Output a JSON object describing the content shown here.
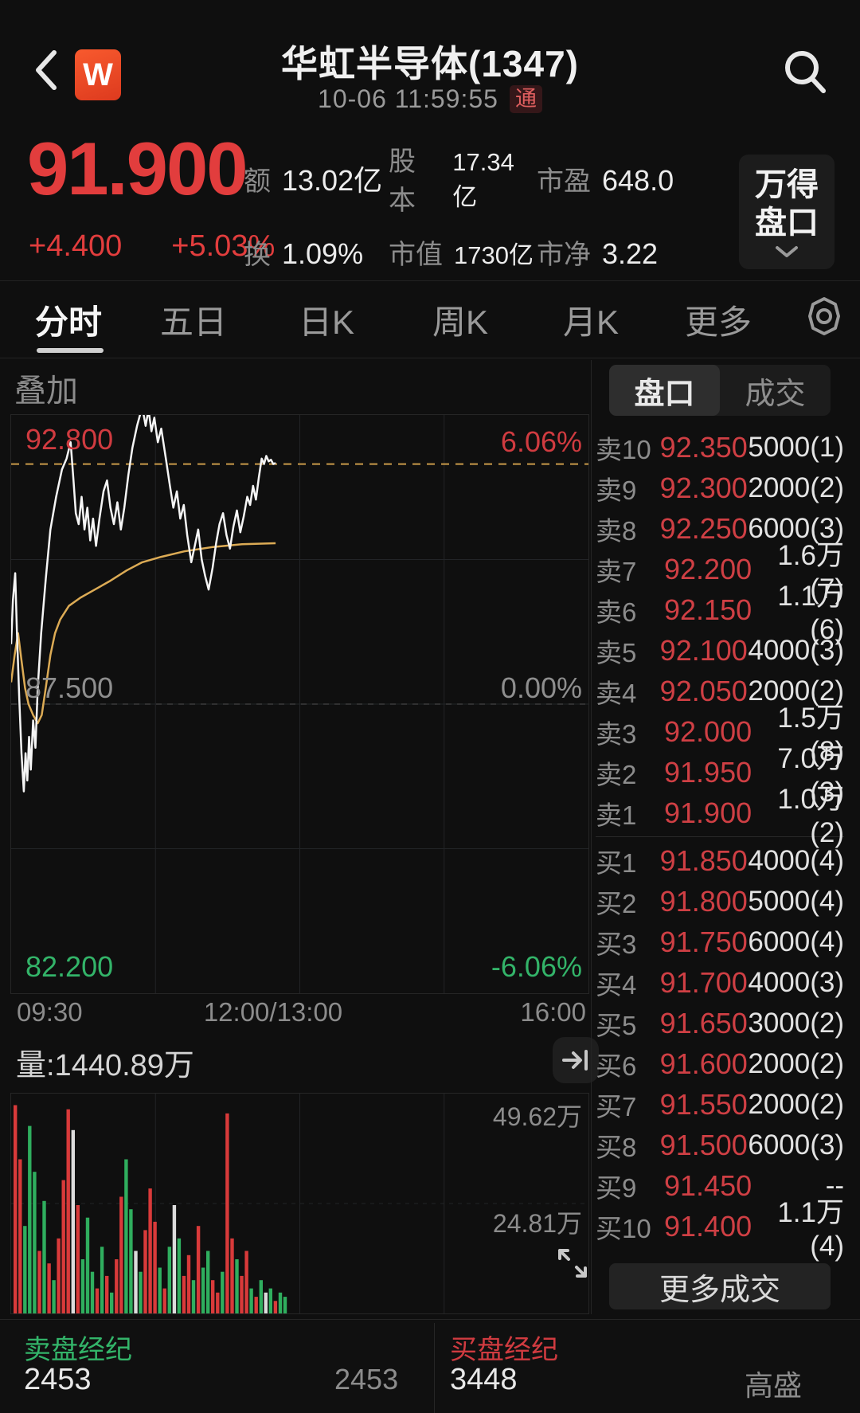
{
  "header": {
    "logo_text": "W",
    "title": "华虹半导体(1347)",
    "datetime": "10-06 11:59:55",
    "badge": "通"
  },
  "price_panel": {
    "last_price": "91.900",
    "change_abs": "+4.400",
    "change_pct": "+5.03%",
    "stats": {
      "r1c1_label": "额",
      "r1c1_value": "13.02亿",
      "r1c2_label": "股本",
      "r1c2_value": "17.34亿",
      "r1c3_label": "市盈",
      "r1c3_value": "648.0",
      "r2c1_label": "换",
      "r2c1_value": "1.09%",
      "r2c2_label": "市值",
      "r2c2_value": "1730亿",
      "r2c3_label": "市净",
      "r2c3_value": "3.22"
    },
    "wind_button_line1": "万得",
    "wind_button_line2": "盘口"
  },
  "tabs": {
    "items": [
      {
        "label": "分时",
        "active": true
      },
      {
        "label": "五日",
        "active": false
      },
      {
        "label": "日K",
        "active": false
      },
      {
        "label": "周K",
        "active": false
      },
      {
        "label": "月K",
        "active": false
      },
      {
        "label": "更多",
        "active": false
      }
    ]
  },
  "chart_labels": {
    "overlay": "叠加",
    "high_price": "92.800",
    "high_pct": "6.06%",
    "mid_price": "87.500",
    "mid_pct": "0.00%",
    "low_price": "82.200",
    "low_pct": "-6.06%",
    "time_left": "09:30",
    "time_mid": "12:00/13:00",
    "time_right": "16:00"
  },
  "volume_panel": {
    "header": "量:1440.89万",
    "scale_top": "49.62万",
    "scale_mid": "24.81万"
  },
  "order_book": {
    "tab_depth": "盘口",
    "tab_trades": "成交",
    "rows": [
      {
        "side": "卖10",
        "price": "92.350",
        "qty": "5000(1)"
      },
      {
        "side": "卖9",
        "price": "92.300",
        "qty": "2000(2)"
      },
      {
        "side": "卖8",
        "price": "92.250",
        "qty": "6000(3)"
      },
      {
        "side": "卖7",
        "price": "92.200",
        "qty": "1.6万(7)"
      },
      {
        "side": "卖6",
        "price": "92.150",
        "qty": "1.1万(6)"
      },
      {
        "side": "卖5",
        "price": "92.100",
        "qty": "4000(3)"
      },
      {
        "side": "卖4",
        "price": "92.050",
        "qty": "2000(2)"
      },
      {
        "side": "卖3",
        "price": "92.000",
        "qty": "1.5万(8)"
      },
      {
        "side": "卖2",
        "price": "91.950",
        "qty": "7.0万(3)"
      },
      {
        "side": "卖1",
        "price": "91.900",
        "qty": "1.0万(2)"
      },
      {
        "side": "买1",
        "price": "91.850",
        "qty": "4000(4)"
      },
      {
        "side": "买2",
        "price": "91.800",
        "qty": "5000(4)"
      },
      {
        "side": "买3",
        "price": "91.750",
        "qty": "6000(4)"
      },
      {
        "side": "买4",
        "price": "91.700",
        "qty": "4000(3)"
      },
      {
        "side": "买5",
        "price": "91.650",
        "qty": "3000(2)"
      },
      {
        "side": "买6",
        "price": "91.600",
        "qty": "2000(2)"
      },
      {
        "side": "买7",
        "price": "91.550",
        "qty": "2000(2)"
      },
      {
        "side": "买8",
        "price": "91.500",
        "qty": "6000(3)"
      },
      {
        "side": "买9",
        "price": "91.450",
        "qty": "--"
      },
      {
        "side": "买10",
        "price": "91.400",
        "qty": "1.1万(4)"
      }
    ],
    "more_button": "更多成交"
  },
  "brokers": {
    "sell_label": "卖盘经纪",
    "sell_value": "2453",
    "sell_value2": "2453",
    "buy_label": "买盘经纪",
    "buy_value": "3448",
    "buy_broker": "高盛"
  },
  "colors": {
    "up_red": "#e23d3d",
    "book_red": "#cf3f44",
    "down_green": "#33b469",
    "avg_yellow": "#dcab55",
    "price_dash_orange": "#c99a4a",
    "prevclose_dash_gray": "#777777",
    "grid": "#222427",
    "vol_red": "#d93a3a",
    "vol_green": "#2fae5e",
    "vol_white": "#dcdcdc"
  },
  "chart_data": {
    "type": "line",
    "title": "华虹半导体(1347) 分时",
    "x_session": [
      "09:30",
      "12:00/13:00",
      "16:00"
    ],
    "ylim": [
      82.2,
      92.8
    ],
    "prev_close": 87.5,
    "last_price_line": 91.9,
    "pct_range": [
      "6.06%",
      "0.00%",
      "-6.06%"
    ],
    "grid": true,
    "minute_line": [
      [
        0.0,
        88.6
      ],
      [
        0.003,
        89.4
      ],
      [
        0.007,
        89.9
      ],
      [
        0.01,
        88.8
      ],
      [
        0.014,
        87.6
      ],
      [
        0.018,
        86.6
      ],
      [
        0.022,
        85.9
      ],
      [
        0.025,
        86.6
      ],
      [
        0.028,
        86.1
      ],
      [
        0.031,
        86.9
      ],
      [
        0.034,
        86.3
      ],
      [
        0.038,
        87.2
      ],
      [
        0.042,
        86.7
      ],
      [
        0.046,
        87.8
      ],
      [
        0.052,
        88.8
      ],
      [
        0.06,
        89.8
      ],
      [
        0.068,
        90.7
      ],
      [
        0.078,
        91.3
      ],
      [
        0.088,
        91.8
      ],
      [
        0.096,
        92.0
      ],
      [
        0.103,
        92.3
      ],
      [
        0.108,
        91.6
      ],
      [
        0.112,
        91.0
      ],
      [
        0.117,
        90.8
      ],
      [
        0.122,
        91.3
      ],
      [
        0.127,
        90.7
      ],
      [
        0.132,
        91.1
      ],
      [
        0.137,
        90.5
      ],
      [
        0.142,
        90.9
      ],
      [
        0.147,
        90.4
      ],
      [
        0.153,
        90.9
      ],
      [
        0.16,
        91.4
      ],
      [
        0.166,
        91.6
      ],
      [
        0.172,
        91.1
      ],
      [
        0.178,
        90.8
      ],
      [
        0.184,
        91.2
      ],
      [
        0.19,
        90.7
      ],
      [
        0.196,
        91.1
      ],
      [
        0.203,
        91.7
      ],
      [
        0.21,
        92.2
      ],
      [
        0.218,
        92.6
      ],
      [
        0.227,
        92.95
      ],
      [
        0.233,
        92.6
      ],
      [
        0.238,
        92.9
      ],
      [
        0.243,
        92.5
      ],
      [
        0.248,
        92.75
      ],
      [
        0.254,
        92.3
      ],
      [
        0.26,
        92.55
      ],
      [
        0.268,
        92.0
      ],
      [
        0.275,
        91.5
      ],
      [
        0.281,
        91.1
      ],
      [
        0.287,
        91.4
      ],
      [
        0.293,
        90.9
      ],
      [
        0.299,
        91.15
      ],
      [
        0.305,
        90.6
      ],
      [
        0.312,
        90.1
      ],
      [
        0.318,
        90.4
      ],
      [
        0.324,
        90.7
      ],
      [
        0.33,
        90.15
      ],
      [
        0.336,
        89.85
      ],
      [
        0.342,
        89.6
      ],
      [
        0.349,
        90.0
      ],
      [
        0.355,
        90.45
      ],
      [
        0.361,
        90.8
      ],
      [
        0.367,
        91.0
      ],
      [
        0.373,
        90.6
      ],
      [
        0.379,
        90.35
      ],
      [
        0.385,
        90.75
      ],
      [
        0.391,
        91.05
      ],
      [
        0.397,
        90.65
      ],
      [
        0.403,
        90.95
      ],
      [
        0.409,
        91.3
      ],
      [
        0.414,
        91.15
      ],
      [
        0.419,
        91.5
      ],
      [
        0.424,
        91.25
      ],
      [
        0.429,
        91.65
      ],
      [
        0.434,
        92.0
      ],
      [
        0.438,
        91.9
      ],
      [
        0.442,
        92.05
      ],
      [
        0.446,
        91.95
      ],
      [
        0.45,
        91.98
      ],
      [
        0.454,
        91.9
      ],
      [
        0.458,
        91.92
      ]
    ],
    "avg_line": [
      [
        0.0,
        87.9
      ],
      [
        0.006,
        88.4
      ],
      [
        0.012,
        88.8
      ],
      [
        0.018,
        88.3
      ],
      [
        0.024,
        87.8
      ],
      [
        0.03,
        87.5
      ],
      [
        0.038,
        87.3
      ],
      [
        0.046,
        87.15
      ],
      [
        0.053,
        87.3
      ],
      [
        0.06,
        87.8
      ],
      [
        0.068,
        88.4
      ],
      [
        0.076,
        88.8
      ],
      [
        0.085,
        89.05
      ],
      [
        0.1,
        89.3
      ],
      [
        0.12,
        89.45
      ],
      [
        0.145,
        89.6
      ],
      [
        0.17,
        89.75
      ],
      [
        0.2,
        89.95
      ],
      [
        0.227,
        90.1
      ],
      [
        0.26,
        90.2
      ],
      [
        0.3,
        90.3
      ],
      [
        0.35,
        90.38
      ],
      [
        0.4,
        90.43
      ],
      [
        0.458,
        90.45
      ]
    ],
    "volume_unit": "万",
    "volume_total": "1440.89万",
    "volume_ymax": 52,
    "volume_scale_labels": [
      49.62,
      24.81
    ],
    "volume_bars": [
      [
        50,
        "r"
      ],
      [
        37,
        "r"
      ],
      [
        21,
        "g"
      ],
      [
        45,
        "g"
      ],
      [
        34,
        "g"
      ],
      [
        15,
        "r"
      ],
      [
        27,
        "g"
      ],
      [
        12,
        "r"
      ],
      [
        8,
        "g"
      ],
      [
        18,
        "r"
      ],
      [
        32,
        "r"
      ],
      [
        49,
        "r"
      ],
      [
        44,
        "w"
      ],
      [
        26,
        "r"
      ],
      [
        13,
        "g"
      ],
      [
        23,
        "g"
      ],
      [
        10,
        "g"
      ],
      [
        6,
        "r"
      ],
      [
        16,
        "g"
      ],
      [
        9,
        "r"
      ],
      [
        5,
        "g"
      ],
      [
        13,
        "r"
      ],
      [
        28,
        "r"
      ],
      [
        37,
        "g"
      ],
      [
        25,
        "g"
      ],
      [
        15,
        "w"
      ],
      [
        10,
        "g"
      ],
      [
        20,
        "r"
      ],
      [
        30,
        "r"
      ],
      [
        22,
        "r"
      ],
      [
        11,
        "g"
      ],
      [
        6,
        "r"
      ],
      [
        16,
        "g"
      ],
      [
        26,
        "w"
      ],
      [
        18,
        "g"
      ],
      [
        9,
        "r"
      ],
      [
        14,
        "r"
      ],
      [
        8,
        "g"
      ],
      [
        21,
        "r"
      ],
      [
        11,
        "g"
      ],
      [
        15,
        "g"
      ],
      [
        8,
        "r"
      ],
      [
        5,
        "r"
      ],
      [
        10,
        "g"
      ],
      [
        48,
        "r"
      ],
      [
        18,
        "r"
      ],
      [
        13,
        "g"
      ],
      [
        9,
        "r"
      ],
      [
        15,
        "r"
      ],
      [
        6,
        "g"
      ],
      [
        4,
        "r"
      ],
      [
        8,
        "g"
      ],
      [
        5,
        "w"
      ],
      [
        6,
        "g"
      ],
      [
        3,
        "r"
      ],
      [
        5,
        "g"
      ],
      [
        4,
        "g"
      ]
    ]
  }
}
